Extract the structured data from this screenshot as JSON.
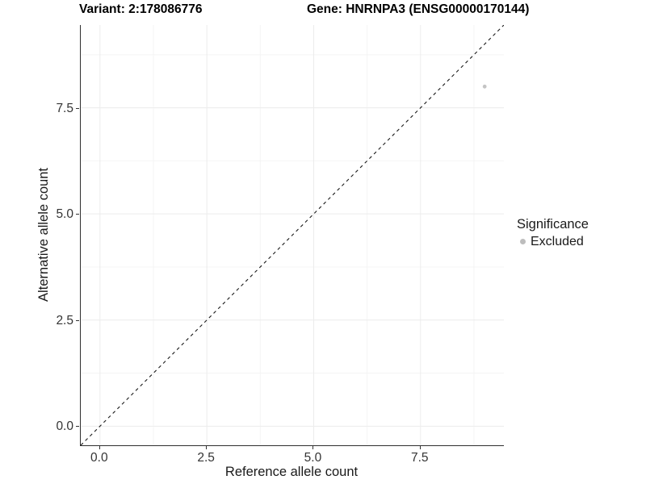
{
  "header": {
    "variant_title": "Variant: 2:178086776",
    "gene_title": "Gene: HNRNPA3 (ENSG00000170144)"
  },
  "chart_data": {
    "type": "scatter",
    "xlabel": "Reference allele count",
    "ylabel": "Alternative allele count",
    "xlim": [
      -0.45,
      9.45
    ],
    "ylim": [
      -0.45,
      9.45
    ],
    "x_ticks": {
      "values": [
        0,
        2.5,
        5,
        7.5
      ],
      "labels": [
        "0.0",
        "2.5",
        "5.0",
        "7.5"
      ]
    },
    "y_ticks": {
      "values": [
        0,
        2.5,
        5,
        7.5
      ],
      "labels": [
        "0.0",
        "2.5",
        "5.0",
        "7.5"
      ]
    },
    "minor_breaks": [
      1.25,
      3.75,
      6.25,
      8.75
    ],
    "grid": true,
    "series": [
      {
        "name": "Excluded",
        "color": "#c4c4c4",
        "marker_radius": 2.4,
        "points": [
          {
            "x": 9,
            "y": 8
          }
        ]
      }
    ],
    "reference_line": {
      "type": "identity",
      "slope": 1,
      "intercept": 0,
      "style": "dashed",
      "color": "#1a1a1a"
    },
    "legend": {
      "title": "Significance",
      "position": "right",
      "entries": [
        {
          "label": "Excluded",
          "color": "#bdbdbd"
        }
      ]
    }
  },
  "colors": {
    "grid_major": "#ececec",
    "grid_minor": "#f4f4f4",
    "axis_line": "#2f2f2f",
    "tick_label": "#343434",
    "background": "#ffffff"
  }
}
